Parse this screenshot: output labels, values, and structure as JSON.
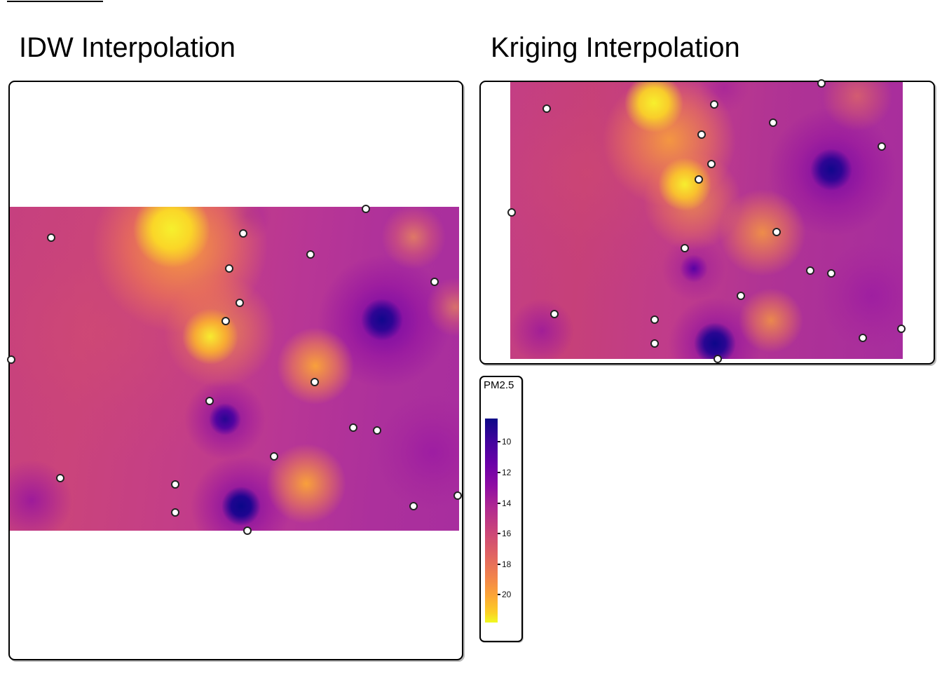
{
  "panels": {
    "idw": {
      "title": "IDW Interpolation"
    },
    "kriging": {
      "title": "Kriging Interpolation"
    }
  },
  "legend": {
    "title": "PM2.5",
    "ticks": [
      {
        "label": "10",
        "pos_pct": 11.3
      },
      {
        "label": "12",
        "pos_pct": 26.4
      },
      {
        "label": "14",
        "pos_pct": 41.6
      },
      {
        "label": "16",
        "pos_pct": 56.4
      },
      {
        "label": "18",
        "pos_pct": 71.5
      },
      {
        "label": "20",
        "pos_pct": 86.3
      }
    ]
  },
  "chart_data": {
    "type": "heatmap",
    "subtype": "spatial-interpolation-comparison",
    "panels": [
      {
        "title": "IDW Interpolation",
        "method": "IDW"
      },
      {
        "title": "Kriging Interpolation",
        "method": "Kriging"
      }
    ],
    "variable": "PM2.5",
    "legend": {
      "title": "PM2.5",
      "tick_values": [
        10,
        12,
        14,
        16,
        18,
        20
      ],
      "orientation": "vertical",
      "low_color_at_top": true,
      "colormap_stops": [
        "#0d0887",
        "#41049d",
        "#6a00a8",
        "#8f0da4",
        "#b12a90",
        "#cc4778",
        "#e16462",
        "#f2844b",
        "#fca636",
        "#fcce25",
        "#f0f921"
      ],
      "colormap_note": "plasma; dark navy = low PM2.5 (~10), bright yellow = high PM2.5 (~20+)"
    },
    "station_marker": {
      "shape": "circle",
      "fill": "#ffffff",
      "stroke": "#1a1a1a"
    },
    "stations_normalized_map_coords": [
      {
        "x": 0.793,
        "y": 0.006
      },
      {
        "x": 0.092,
        "y": 0.095
      },
      {
        "x": 0.52,
        "y": 0.082
      },
      {
        "x": 0.488,
        "y": 0.19
      },
      {
        "x": 0.669,
        "y": 0.147
      },
      {
        "x": 0.946,
        "y": 0.232
      },
      {
        "x": 0.512,
        "y": 0.297
      },
      {
        "x": 0.481,
        "y": 0.353
      },
      {
        "x": 0.003,
        "y": 0.472
      },
      {
        "x": 0.679,
        "y": 0.541
      },
      {
        "x": 0.444,
        "y": 0.599
      },
      {
        "x": 0.764,
        "y": 0.682
      },
      {
        "x": 0.817,
        "y": 0.69
      },
      {
        "x": 0.588,
        "y": 0.771
      },
      {
        "x": 0.112,
        "y": 0.838
      },
      {
        "x": 0.368,
        "y": 0.857
      },
      {
        "x": 0.368,
        "y": 0.944
      },
      {
        "x": 0.898,
        "y": 0.924
      },
      {
        "x": 0.997,
        "y": 0.892
      },
      {
        "x": 0.529,
        "y": 1.0
      }
    ],
    "surface_features_note": "High-PM2.5 (yellow/orange) diagonal band upper-centre-left; low-PM2.5 (dark navy) pockets centre-right, lower-centre and bottom; magenta/pink background"
  }
}
